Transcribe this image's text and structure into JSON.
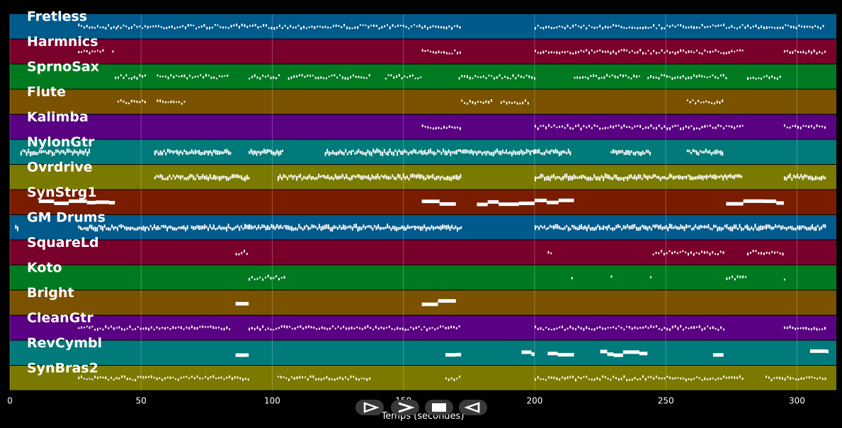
{
  "chart_data": {
    "type": "piano-roll",
    "xlabel": "Temps (secondes)",
    "xlim": [
      0,
      315
    ],
    "x_ticks": [
      0,
      50,
      100,
      150,
      200,
      250,
      300
    ],
    "grid": true,
    "tracks": [
      {
        "name": "Fretless",
        "color": "#005a8c",
        "segments": [
          [
            26,
            41
          ],
          [
            41,
            172
          ],
          [
            200,
            310
          ]
        ],
        "style": "dotted"
      },
      {
        "name": "Harmnics",
        "color": "#7a002c",
        "segments": [
          [
            26,
            36
          ],
          [
            39,
            40
          ],
          [
            157,
            172
          ],
          [
            200,
            279
          ],
          [
            295,
            311
          ]
        ],
        "style": "dotted"
      },
      {
        "name": "SprnoSax",
        "color": "#007a20",
        "segments": [
          [
            40,
            52
          ],
          [
            56,
            83
          ],
          [
            91,
            103
          ],
          [
            106,
            137
          ],
          [
            143,
            157
          ],
          [
            171,
            200
          ],
          [
            215,
            240
          ],
          [
            243,
            273
          ],
          [
            281,
            294
          ]
        ],
        "style": "dotted"
      },
      {
        "name": "Flute",
        "color": "#7a5200",
        "segments": [
          [
            41,
            52
          ],
          [
            56,
            67
          ],
          [
            172,
            184
          ],
          [
            187,
            198
          ],
          [
            258,
            272
          ]
        ],
        "style": "dotted"
      },
      {
        "name": "Kalimba",
        "color": "#5a0082",
        "segments": [
          [
            157,
            172
          ],
          [
            200,
            279
          ],
          [
            295,
            311
          ]
        ],
        "style": "dotted"
      },
      {
        "name": "NylonGtr",
        "color": "#007a7a",
        "segments": [
          [
            4,
            30
          ],
          [
            55,
            84
          ],
          [
            91,
            104
          ],
          [
            120,
            170
          ],
          [
            170,
            200
          ],
          [
            200,
            214
          ],
          [
            229,
            244
          ],
          [
            258,
            272
          ]
        ],
        "style": "dense"
      },
      {
        "name": "Ovrdrive",
        "color": "#7a7a00",
        "segments": [
          [
            55,
            91
          ],
          [
            102,
            172
          ],
          [
            200,
            279
          ],
          [
            295,
            311
          ]
        ],
        "style": "dense"
      },
      {
        "name": "SynStrg1",
        "color": "#7a1c00",
        "segments": [
          [
            11,
            40
          ],
          [
            157,
            170
          ],
          [
            178,
            200
          ],
          [
            200,
            215
          ],
          [
            273,
            295
          ]
        ],
        "style": "blocks"
      },
      {
        "name": "GM Drums",
        "color": "#005a8c",
        "segments": [
          [
            2,
            3
          ],
          [
            26,
            68
          ],
          [
            69,
            91
          ],
          [
            91,
            172
          ],
          [
            200,
            281
          ],
          [
            281,
            311
          ]
        ],
        "style": "dense"
      },
      {
        "name": "SquareLd",
        "color": "#7a002c",
        "segments": [
          [
            86,
            91
          ],
          [
            205,
            207
          ],
          [
            245,
            272
          ],
          [
            281,
            295
          ]
        ],
        "style": "dotted"
      },
      {
        "name": "Koto",
        "color": "#007a20",
        "segments": [
          [
            91,
            105
          ],
          [
            214,
            215
          ],
          [
            229,
            230
          ],
          [
            244,
            245
          ],
          [
            273,
            281
          ],
          [
            295,
            296
          ]
        ],
        "style": "dotted"
      },
      {
        "name": "Bright",
        "color": "#7a5200",
        "segments": [
          [
            86,
            91
          ],
          [
            157,
            170
          ]
        ],
        "style": "blocks"
      },
      {
        "name": "CleanGtr",
        "color": "#5a0082",
        "segments": [
          [
            26,
            84
          ],
          [
            91,
            172
          ],
          [
            200,
            272
          ],
          [
            295,
            311
          ]
        ],
        "style": "dotted"
      },
      {
        "name": "RevCymbl",
        "color": "#007a7a",
        "segments": [
          [
            86,
            91
          ],
          [
            166,
            172
          ],
          [
            195,
            200
          ],
          [
            205,
            215
          ],
          [
            225,
            243
          ],
          [
            268,
            272
          ],
          [
            305,
            312
          ]
        ],
        "style": "blocks"
      },
      {
        "name": "SynBras2",
        "color": "#7a7a00",
        "segments": [
          [
            26,
            91
          ],
          [
            102,
            137
          ],
          [
            166,
            172
          ],
          [
            200,
            279
          ],
          [
            288,
            311
          ]
        ],
        "style": "dotted"
      }
    ]
  },
  "controls": [
    {
      "name": "play-button",
      "icon": "play-icon"
    },
    {
      "name": "forward-button",
      "icon": "chevron-right-icon"
    },
    {
      "name": "stop-button",
      "icon": "stop-icon"
    },
    {
      "name": "rewind-button",
      "icon": "rewind-icon"
    }
  ]
}
